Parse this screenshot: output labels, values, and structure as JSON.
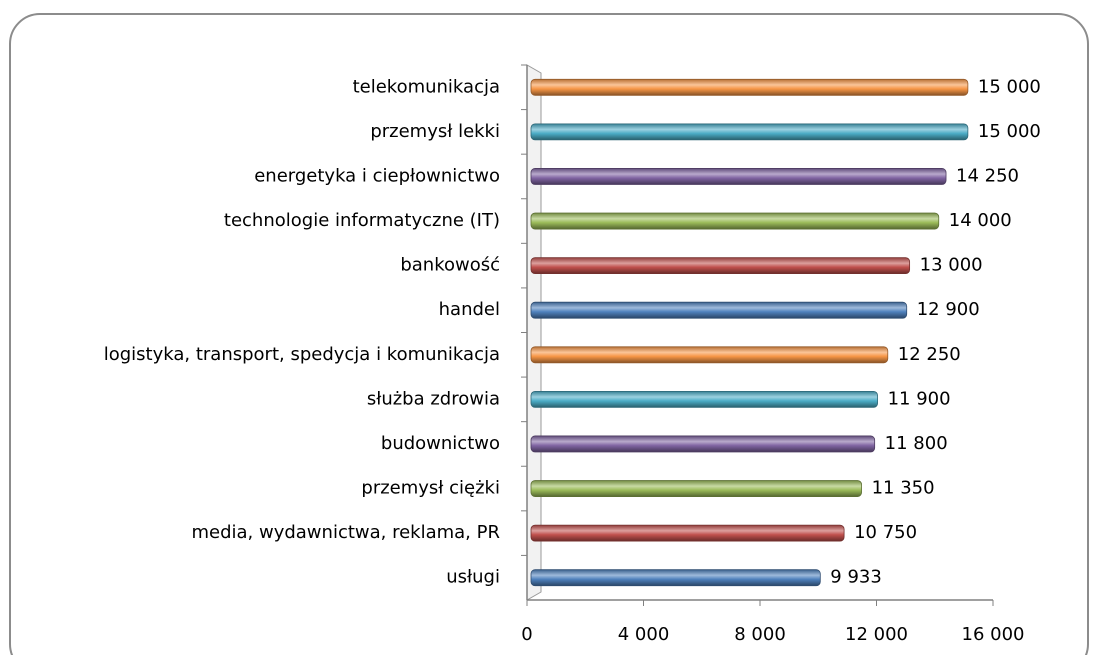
{
  "chart_data": {
    "type": "bar",
    "orientation": "horizontal",
    "categories": [
      "telekomunikacja",
      "przemysł lekki",
      "energetyka i ciepłownictwo",
      "technologie informatyczne (IT)",
      "bankowość",
      "handel",
      "logistyka, transport, spedycja i komunikacja",
      "służba zdrowia",
      "budownictwo",
      "przemysł ciężki",
      "media, wydawnictwa, reklama, PR",
      "usługi"
    ],
    "values": [
      15000,
      15000,
      14250,
      14000,
      13000,
      12900,
      12250,
      11900,
      11800,
      11350,
      10750,
      9933
    ],
    "value_labels": [
      "15 000",
      "15 000",
      "14 250",
      "14 000",
      "13 000",
      "12 900",
      "12 250",
      "11 900",
      "11 800",
      "11 350",
      "10 750",
      "9 933"
    ],
    "colors": [
      "#f79646",
      "#4bacc6",
      "#8064a2",
      "#9bbb59",
      "#c0504d",
      "#4f81bd",
      "#f79646",
      "#4bacc6",
      "#8064a2",
      "#9bbb59",
      "#c0504d",
      "#4f81bd"
    ],
    "xlim": [
      0,
      16000
    ],
    "xticks": [
      0,
      {
        "value": 4000,
        "label": "4 000"
      },
      {
        "value": 8000,
        "label": "8 000"
      },
      {
        "value": 12000,
        "label": "12 000"
      },
      {
        "value": 16000,
        "label": "16 000"
      }
    ],
    "grid": false
  }
}
